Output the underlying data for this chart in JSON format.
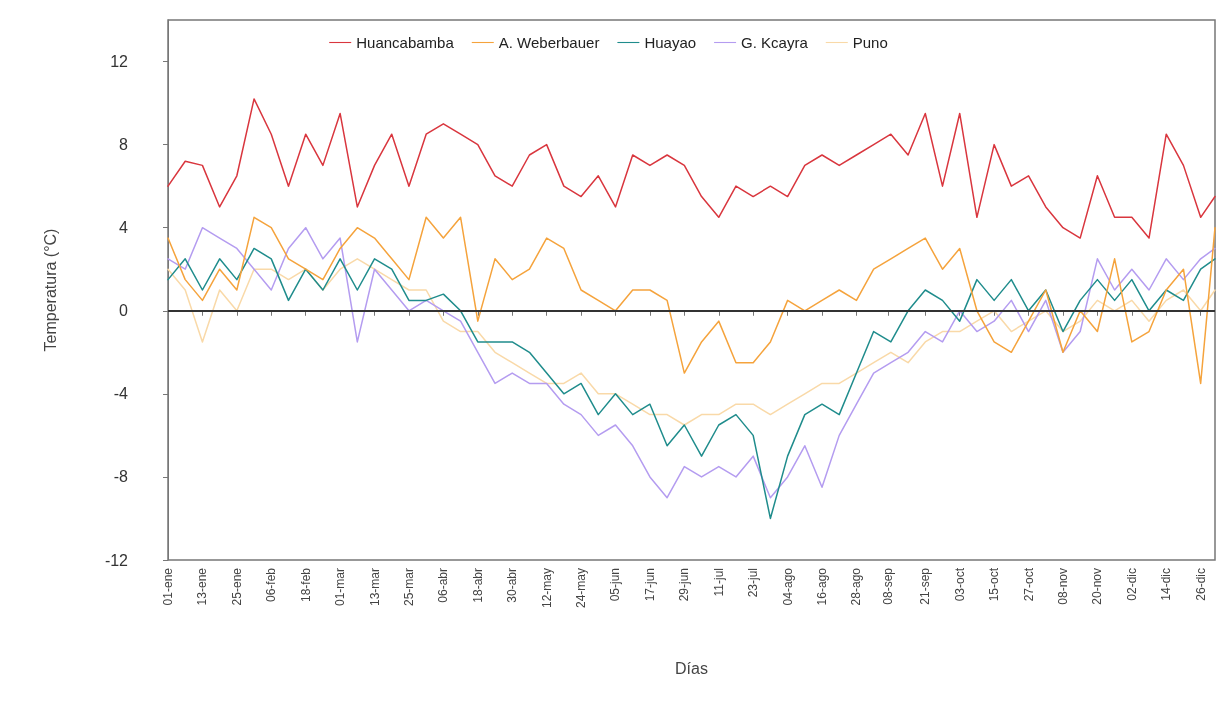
{
  "chart_data": {
    "type": "line",
    "xlabel": "Días",
    "ylabel": "Temperatura (°C)",
    "x": [
      "--01-01",
      "--01-07",
      "--01-13",
      "--01-19",
      "--01-25",
      "--01-31",
      "--02-06",
      "--02-12",
      "--02-18",
      "--02-24",
      "--03-01",
      "--03-07",
      "--03-13",
      "--03-19",
      "--03-25",
      "--03-31",
      "--04-06",
      "--04-12",
      "--04-18",
      "--04-24",
      "--04-30",
      "--05-06",
      "--05-12",
      "--05-18",
      "--05-24",
      "--05-30",
      "--06-05",
      "--06-11",
      "--06-17",
      "--06-23",
      "--06-29",
      "--07-05",
      "--07-11",
      "--07-17",
      "--07-23",
      "--07-29",
      "--08-04",
      "--08-10",
      "--08-16",
      "--08-22",
      "--08-28",
      "--09-03",
      "--09-09",
      "--09-15",
      "--09-21",
      "--09-27",
      "--10-03",
      "--10-09",
      "--10-15",
      "--10-21",
      "--10-27",
      "--11-02",
      "--11-08",
      "--11-14",
      "--11-20",
      "--11-26",
      "--12-02",
      "--12-08",
      "--12-14",
      "--12-20",
      "--12-26",
      "--12-31"
    ],
    "series": [
      {
        "name": "Huancabamba",
        "color": "#d9363e",
        "values": [
          6,
          7.2,
          7,
          5,
          6.5,
          10.2,
          8.5,
          6,
          8.5,
          7,
          9.5,
          5,
          7,
          8.5,
          6,
          8.5,
          9,
          8.5,
          8,
          6.5,
          6,
          7.5,
          8,
          6,
          5.5,
          6.5,
          5,
          7.5,
          7,
          7.5,
          7,
          5.5,
          4.5,
          6,
          5.5,
          6,
          5.5,
          7,
          7.5,
          7,
          7.5,
          8,
          8.5,
          7.5,
          9.5,
          6,
          9.5,
          4.5,
          8,
          6,
          6.5,
          5,
          4,
          3.5,
          6.5,
          4.5,
          4.5,
          3.5,
          8.5,
          7,
          4.5,
          5.5
        ]
      },
      {
        "name": "A. Weberbauer",
        "color": "#f5a33c",
        "values": [
          3.5,
          1.5,
          0.5,
          2,
          1,
          4.5,
          4,
          2.5,
          2,
          1.5,
          3,
          4,
          3.5,
          2.5,
          1.5,
          4.5,
          3.5,
          4.5,
          -0.5,
          2.5,
          1.5,
          2,
          3.5,
          3,
          1,
          0.5,
          0,
          1,
          1,
          0.5,
          -3,
          -1.5,
          -0.5,
          -2.5,
          -2.5,
          -1.5,
          0.5,
          0,
          0.5,
          1,
          0.5,
          2,
          2.5,
          3,
          3.5,
          2,
          3,
          0,
          -1.5,
          -2,
          -0.5,
          1,
          -2,
          0,
          -1,
          2.5,
          -1.5,
          -1,
          1,
          2,
          -3.5,
          4
        ]
      },
      {
        "name": "Huayao",
        "color": "#1f8c8c",
        "values": [
          1.5,
          2.5,
          1,
          2.5,
          1.5,
          3,
          2.5,
          0.5,
          2,
          1,
          2.5,
          1,
          2.5,
          2,
          0.5,
          0.5,
          0.8,
          0,
          -1.5,
          -1.5,
          -1.5,
          -2,
          -3,
          -4,
          -3.5,
          -5,
          -4,
          -5,
          -4.5,
          -6.5,
          -5.5,
          -7,
          -5.5,
          -5,
          -6,
          -10,
          -7,
          -5,
          -4.5,
          -5,
          -3,
          -1,
          -1.5,
          0,
          1,
          0.5,
          -0.5,
          1.5,
          0.5,
          1.5,
          0,
          1,
          -1,
          0.5,
          1.5,
          0.5,
          1.5,
          0,
          1,
          0.5,
          2,
          2.5
        ]
      },
      {
        "name": "G. Kcayra",
        "color": "#b49cf0",
        "values": [
          2.5,
          2,
          4,
          3.5,
          3,
          2,
          1,
          3,
          4,
          2.5,
          3.5,
          -1.5,
          2,
          1,
          0,
          0.5,
          0,
          -0.5,
          -2,
          -3.5,
          -3,
          -3.5,
          -3.5,
          -4.5,
          -5,
          -6,
          -5.5,
          -6.5,
          -8,
          -9,
          -7.5,
          -8,
          -7.5,
          -8,
          -7,
          -9,
          -8,
          -6.5,
          -8.5,
          -6,
          -4.5,
          -3,
          -2.5,
          -2,
          -1,
          -1.5,
          0,
          -1,
          -0.5,
          0.5,
          -1,
          0.5,
          -2,
          -1,
          2.5,
          1,
          2,
          1,
          2.5,
          1.5,
          2.5,
          3
        ]
      },
      {
        "name": "Puno",
        "color": "#f9d9a8",
        "values": [
          2,
          1,
          -1.5,
          1,
          0,
          2,
          2,
          1.5,
          2,
          1,
          2,
          2.5,
          2,
          1.5,
          1,
          1,
          -0.5,
          -1,
          -1,
          -2,
          -2.5,
          -3,
          -3.5,
          -3.5,
          -3,
          -4,
          -4,
          -4.5,
          -5,
          -5,
          -5.5,
          -5,
          -5,
          -4.5,
          -4.5,
          -5,
          -4.5,
          -4,
          -3.5,
          -3.5,
          -3,
          -2.5,
          -2,
          -2.5,
          -1.5,
          -1,
          -1,
          -0.5,
          0,
          -1,
          -0.5,
          0,
          -1,
          -0.5,
          0.5,
          0,
          0.5,
          -0.5,
          0.5,
          1,
          0,
          1
        ]
      }
    ],
    "xlim": [
      "--01-01",
      "--12-31"
    ],
    "xticks": [
      {
        "value": "--01-01",
        "label": "01-ene"
      },
      {
        "value": "--01-13",
        "label": "13-ene"
      },
      {
        "value": "--01-25",
        "label": "25-ene"
      },
      {
        "value": "--02-06",
        "label": "06-feb"
      },
      {
        "value": "--02-18",
        "label": "18-feb"
      },
      {
        "value": "--03-01",
        "label": "01-mar"
      },
      {
        "value": "--03-13",
        "label": "13-mar"
      },
      {
        "value": "--03-25",
        "label": "25-mar"
      },
      {
        "value": "--04-06",
        "label": "06-abr"
      },
      {
        "value": "--04-18",
        "label": "18-abr"
      },
      {
        "value": "--04-30",
        "label": "30-abr"
      },
      {
        "value": "--05-12",
        "label": "12-may"
      },
      {
        "value": "--05-24",
        "label": "24-may"
      },
      {
        "value": "--06-05",
        "label": "05-jun"
      },
      {
        "value": "--06-17",
        "label": "17-jun"
      },
      {
        "value": "--06-29",
        "label": "29-jun"
      },
      {
        "value": "--07-11",
        "label": "11-jul"
      },
      {
        "value": "--07-23",
        "label": "23-jul"
      },
      {
        "value": "--08-04",
        "label": "04-ago"
      },
      {
        "value": "--08-16",
        "label": "16-ago"
      },
      {
        "value": "--08-28",
        "label": "28-ago"
      },
      {
        "value": "--09-08",
        "label": "08-sep"
      },
      {
        "value": "--09-21",
        "label": "21-sep"
      },
      {
        "value": "--10-03",
        "label": "03-oct"
      },
      {
        "value": "--10-15",
        "label": "15-oct"
      },
      {
        "value": "--10-27",
        "label": "27-oct"
      },
      {
        "value": "--11-08",
        "label": "08-nov"
      },
      {
        "value": "--11-20",
        "label": "20-nov"
      },
      {
        "value": "--12-02",
        "label": "02-dic"
      },
      {
        "value": "--12-14",
        "label": "14-dic"
      },
      {
        "value": "--12-26",
        "label": "26-dic"
      }
    ],
    "ylim": [
      -12,
      14
    ],
    "yticks": [
      -12,
      -8,
      -4,
      0,
      4,
      8,
      12
    ],
    "ref_lines": [
      {
        "axis": "y",
        "value": 0,
        "color": "#333333"
      }
    ],
    "grid": false,
    "legend": "top",
    "marker": "none",
    "line_style": "solid"
  }
}
